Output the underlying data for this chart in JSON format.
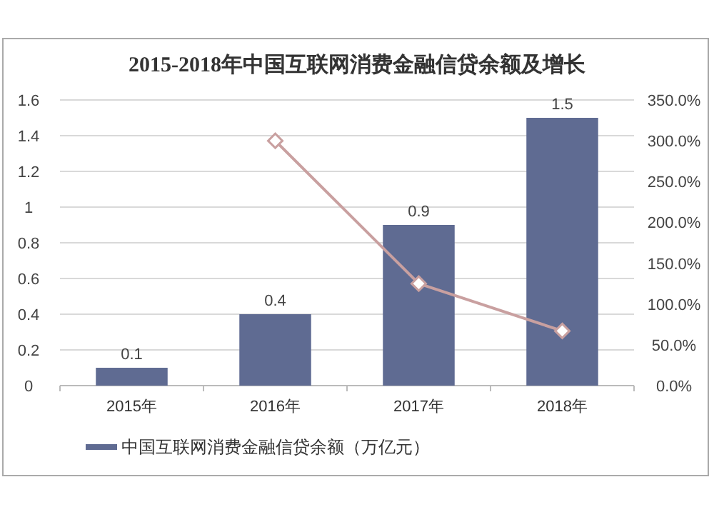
{
  "chart_data": {
    "type": "bar",
    "title": "2015-2018年中国互联网消费金融信贷余额及增长",
    "categories": [
      "2015年",
      "2016年",
      "2017年",
      "2018年"
    ],
    "series": [
      {
        "name": "中国互联网消费金融信贷余额（万亿元）",
        "color": "#5f6b92",
        "values": [
          0.1,
          0.4,
          0.9,
          1.5
        ],
        "value_labels": [
          "0.1",
          "0.4",
          "0.9",
          "1.5"
        ]
      },
      {
        "type": "line",
        "axis": "y2",
        "color": "#c9a0a0",
        "marker": "diamond",
        "values": [
          null,
          300,
          125,
          67
        ]
      }
    ],
    "ylim": [
      0,
      1.6
    ],
    "yticks": [
      0,
      0.2,
      0.4,
      0.6,
      0.8,
      1,
      1.2,
      1.4,
      1.6
    ],
    "y2lim": [
      0,
      350
    ],
    "y2ticks": [
      {
        "value": 0,
        "label": "0.0%"
      },
      {
        "value": 50,
        "label": "50.0%"
      },
      {
        "value": 100,
        "label": "100.0%"
      },
      {
        "value": 150,
        "label": "150.0%"
      },
      {
        "value": 200,
        "label": "200.0%"
      },
      {
        "value": 250,
        "label": "250.0%"
      },
      {
        "value": 300,
        "label": "300.0%"
      },
      {
        "value": 350,
        "label": "350.0%"
      }
    ],
    "grid": "y",
    "legend": "bottom"
  }
}
